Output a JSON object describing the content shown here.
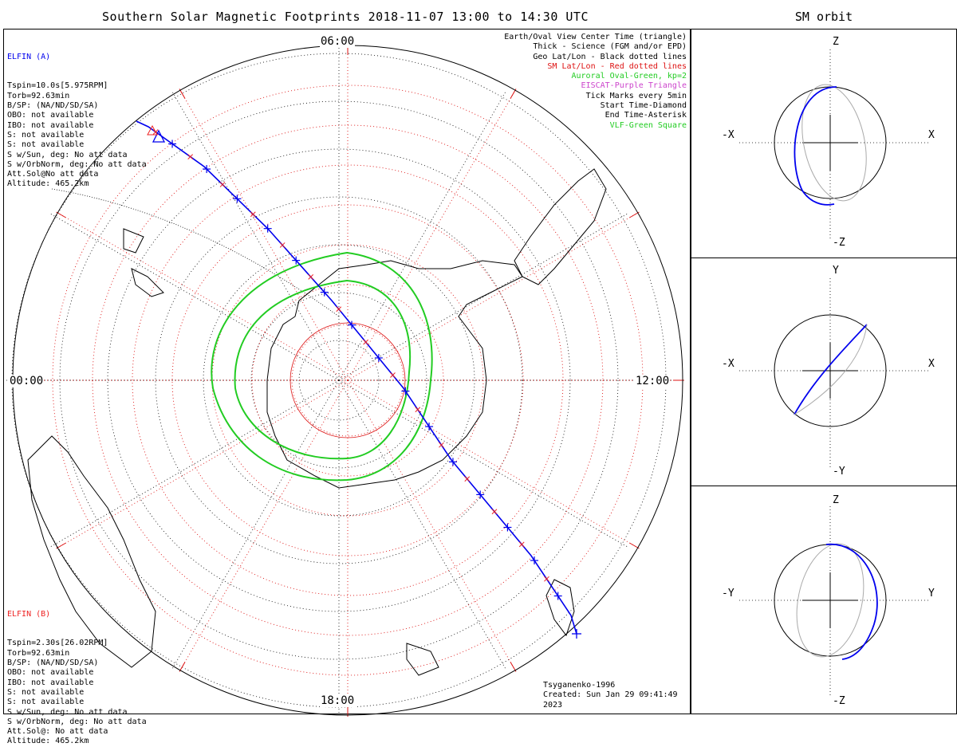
{
  "title": "Southern Solar Magnetic Footprints 2018-11-07 13:00 to 14:30 UTC",
  "orbit_title": "SM orbit",
  "colors": {
    "elfin_a": "#0000ee",
    "elfin_b": "#ee2222",
    "sm_grid": "#dd1111",
    "geo_grid": "#000000",
    "auroral_oval": "#22cc22",
    "eiscat": "#cc44cc",
    "vlf": "#22cc22",
    "orbit_grey": "#aaaaaa"
  },
  "elfin_a_info": {
    "name": "ELFIN (A)",
    "lines": [
      "Tspin=10.0s[5.975RPM]",
      "Torb=92.63min",
      "B/SP: (NA/ND/SD/SA)",
      "OBO: not available",
      "IBO: not available",
      "S: not available",
      "S: not available",
      "S w/Sun, deg: No att data",
      "S w/OrbNorm, deg: No att data",
      "Att.Sol@No att data",
      "Altitude: 465.2km"
    ]
  },
  "elfin_b_info": {
    "name": "ELFIN (B)",
    "lines": [
      "Tspin=2.30s[26.02RPM]",
      "Torb=92.63min",
      "B/SP: (NA/ND/SD/SA)",
      "OBO: not available",
      "IBO: not available",
      "S: not available",
      "S: not available",
      "S w/Sun, deg: No att data",
      "S w/OrbNorm, deg: No att data",
      "Att.Sol@: No att data",
      "Altitude: 465.2km"
    ]
  },
  "legend": [
    {
      "text": "Earth/Oval View Center Time (triangle)",
      "color": "#000000"
    },
    {
      "text": "Thick - Science (FGM and/or EPD)",
      "color": "#000000"
    },
    {
      "text": "Geo Lat/Lon - Black dotted lines",
      "color": "#000000"
    },
    {
      "text": "SM Lat/Lon - Red dotted lines",
      "color": "#dd1111"
    },
    {
      "text": "Auroral Oval-Green, kp=2",
      "color": "#22cc22"
    },
    {
      "text": "EISCAT-Purple Triangle",
      "color": "#cc44cc"
    },
    {
      "text": "Tick Marks every 5min",
      "color": "#000000"
    },
    {
      "text": "Start Time-Diamond",
      "color": "#000000"
    },
    {
      "text": "End Time-Asterisk",
      "color": "#000000"
    },
    {
      "text": "VLF-Green Square",
      "color": "#22cc22"
    }
  ],
  "clock_labels": {
    "top": "06:00",
    "left": "00:00",
    "right": "12:00",
    "bottom": "18:00"
  },
  "footer": {
    "model": "Tsyganenko-1996",
    "created": "Created: Sun Jan 29 09:41:49 2023"
  },
  "orbit_panels": [
    {
      "top": "Z",
      "bottom": "-Z",
      "left": "-X",
      "right": "X"
    },
    {
      "top": "Y",
      "bottom": "-Y",
      "left": "-X",
      "right": "X"
    },
    {
      "top": "Z",
      "bottom": "-Z",
      "left": "-Y",
      "right": "Y"
    }
  ],
  "chart_data": {
    "type": "scatter",
    "projection": "south polar, SM local time",
    "sm_latitude_circles_deg": [
      -80,
      -70,
      -60,
      -50,
      -40,
      -30,
      -20,
      -10,
      0
    ],
    "auroral_oval_kp": 2,
    "series": [
      {
        "name": "ELFIN (A)",
        "color": "#0000ee",
        "tick_interval_min": 5,
        "footprint_track": [
          {
            "x": -265,
            "y": -325
          },
          {
            "x": -250,
            "y": -318
          },
          {
            "x": -180,
            "y": -268
          },
          {
            "x": -100,
            "y": -190
          },
          {
            "x": -20,
            "y": -100
          },
          {
            "x": 70,
            "y": 10
          },
          {
            "x": 130,
            "y": 100
          },
          {
            "x": 230,
            "y": 220
          },
          {
            "x": 280,
            "y": 295
          },
          {
            "x": 287,
            "y": 318
          }
        ]
      }
    ]
  }
}
